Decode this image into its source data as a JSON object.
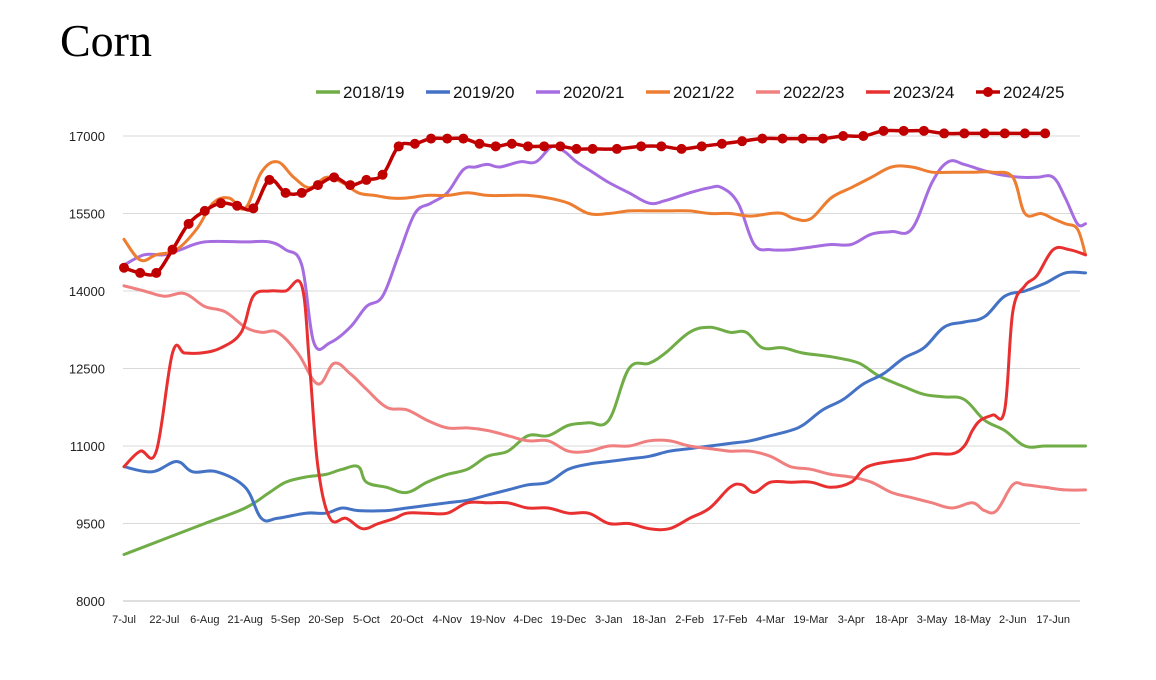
{
  "chart_data": {
    "type": "line",
    "title": "Corn",
    "ylim": [
      8000,
      17000
    ],
    "yticks": [
      8000,
      9500,
      11000,
      12500,
      14000,
      15500,
      17000
    ],
    "grid": "horizontal",
    "legend_position": "top",
    "x_tick_labels": [
      "7-Jul",
      "22-Jul",
      "6-Aug",
      "21-Aug",
      "5-Sep",
      "20-Sep",
      "5-Oct",
      "20-Oct",
      "4-Nov",
      "19-Nov",
      "4-Dec",
      "19-Dec",
      "3-Jan",
      "18-Jan",
      "2-Feb",
      "17-Feb",
      "4-Mar",
      "19-Mar",
      "3-Apr",
      "18-Apr",
      "3-May",
      "18-May",
      "2-Jun",
      "17-Jun"
    ],
    "series": [
      {
        "name": "2018/19",
        "color": "#70ad47",
        "markers": false,
        "x": [
          0,
          1,
          2,
          3,
          3.6,
          4,
          4.5,
          5,
          5.4,
          5.8,
          6,
          6.5,
          7,
          7.5,
          8,
          8.5,
          9,
          9.5,
          10,
          10.5,
          11,
          11.5,
          12,
          12.5,
          13,
          13.4,
          14,
          14.5,
          15,
          15.4,
          15.8,
          16.3,
          16.8,
          17.3,
          17.7,
          18.2,
          18.7,
          19.3,
          19.8,
          20.3,
          20.8,
          21.3,
          21.8,
          22.3,
          22.8,
          23.3,
          23.8
        ],
        "y": [
          8900,
          9200,
          9500,
          9800,
          10100,
          10300,
          10400,
          10450,
          10550,
          10600,
          10300,
          10200,
          10100,
          10300,
          10450,
          10550,
          10800,
          10900,
          11200,
          11200,
          11400,
          11450,
          11500,
          12500,
          12600,
          12800,
          13200,
          13300,
          13200,
          13200,
          12900,
          12900,
          12800,
          12750,
          12700,
          12600,
          12350,
          12150,
          12000,
          11950,
          11900,
          11500,
          11300,
          11000,
          11000,
          11000,
          11000
        ]
      },
      {
        "name": "2019/20",
        "color": "#4472c4",
        "markers": false,
        "x": [
          0,
          0.7,
          1.3,
          1.7,
          2.3,
          3,
          3.4,
          3.8,
          4.5,
          5,
          5.4,
          5.8,
          6.5,
          7,
          7.5,
          8,
          8.5,
          9,
          9.5,
          10,
          10.5,
          11,
          11.5,
          12,
          12.5,
          13,
          13.5,
          14,
          14.5,
          15,
          15.5,
          16,
          16.5,
          16.8,
          17.3,
          17.8,
          18.3,
          18.8,
          19.3,
          19.8,
          20.3,
          20.8,
          21.3,
          21.8,
          22.3,
          22.8,
          23.3,
          23.8
        ],
        "y": [
          10600,
          10500,
          10700,
          10500,
          10500,
          10200,
          9600,
          9600,
          9700,
          9700,
          9800,
          9750,
          9750,
          9800,
          9850,
          9900,
          9950,
          10050,
          10150,
          10250,
          10300,
          10550,
          10650,
          10700,
          10750,
          10800,
          10900,
          10950,
          11000,
          11050,
          11100,
          11200,
          11300,
          11400,
          11700,
          11900,
          12200,
          12400,
          12700,
          12900,
          13300,
          13400,
          13500,
          13900,
          14000,
          14150,
          14350,
          14350
        ]
      },
      {
        "name": "2020/21",
        "color": "#a66de0",
        "markers": false,
        "x": [
          0,
          0.5,
          1,
          1.4,
          2,
          3,
          3.6,
          4,
          4.4,
          4.7,
          5.1,
          5.6,
          6,
          6.4,
          6.8,
          7.2,
          7.6,
          8,
          8.4,
          8.7,
          9,
          9.3,
          9.8,
          10.2,
          10.6,
          10.9,
          11.2,
          11.6,
          12,
          12.5,
          13,
          13.4,
          14,
          14.5,
          14.8,
          15.2,
          15.6,
          16,
          16.5,
          17,
          17.5,
          18,
          18.5,
          19,
          19.5,
          20,
          20.4,
          20.8,
          21.2,
          21.7,
          22.2,
          22.6,
          23,
          23.3,
          23.6,
          23.8
        ],
        "y": [
          14500,
          14700,
          14700,
          14800,
          14950,
          14950,
          14950,
          14800,
          14500,
          13000,
          13000,
          13300,
          13700,
          13900,
          14700,
          15500,
          15700,
          15900,
          16350,
          16400,
          16450,
          16400,
          16500,
          16500,
          16800,
          16700,
          16500,
          16300,
          16100,
          15900,
          15700,
          15750,
          15900,
          16000,
          16000,
          15700,
          14900,
          14800,
          14800,
          14850,
          14900,
          14900,
          15100,
          15150,
          15200,
          16100,
          16500,
          16450,
          16350,
          16250,
          16200,
          16200,
          16200,
          15800,
          15300,
          15300
        ]
      },
      {
        "name": "2021/22",
        "color": "#ed7d31",
        "markers": false,
        "x": [
          0,
          0.4,
          0.8,
          1.3,
          1.8,
          2.2,
          2.6,
          3,
          3.4,
          3.8,
          4.2,
          4.6,
          5,
          5.4,
          5.8,
          6.2,
          6.6,
          7,
          7.5,
          8,
          8.5,
          9,
          9.5,
          10,
          10.5,
          11,
          11.5,
          12,
          12.5,
          13,
          13.5,
          14,
          14.5,
          15,
          15.5,
          16,
          16.3,
          16.6,
          17,
          17.5,
          18,
          18.5,
          19,
          19.5,
          20,
          20.5,
          21,
          21.5,
          22,
          22.3,
          22.7,
          23,
          23.3,
          23.6,
          23.8
        ],
        "y": [
          15000,
          14600,
          14700,
          14800,
          15200,
          15700,
          15800,
          15600,
          16300,
          16500,
          16200,
          16000,
          16200,
          16100,
          15900,
          15850,
          15800,
          15800,
          15850,
          15850,
          15900,
          15850,
          15850,
          15850,
          15800,
          15700,
          15500,
          15500,
          15550,
          15550,
          15550,
          15550,
          15500,
          15500,
          15450,
          15500,
          15500,
          15400,
          15400,
          15800,
          16000,
          16200,
          16400,
          16400,
          16300,
          16300,
          16300,
          16300,
          16200,
          15500,
          15500,
          15400,
          15300,
          15200,
          14700
        ]
      },
      {
        "name": "2022/23",
        "color": "#f08080",
        "markers": false,
        "x": [
          0,
          0.5,
          1,
          1.5,
          2,
          2.5,
          3,
          3.4,
          3.8,
          4.3,
          4.8,
          5.2,
          5.6,
          6,
          6.5,
          7,
          7.5,
          8,
          8.5,
          9,
          9.5,
          10,
          10.5,
          11,
          11.5,
          12,
          12.5,
          13,
          13.5,
          14,
          14.5,
          15,
          15.5,
          16,
          16.5,
          17,
          17.5,
          18,
          18.5,
          19,
          19.5,
          20,
          20.5,
          21,
          21.3,
          21.6,
          22,
          22.3,
          22.8,
          23.3,
          23.8
        ],
        "y": [
          14100,
          14000,
          13900,
          13950,
          13700,
          13600,
          13300,
          13200,
          13200,
          12800,
          12200,
          12600,
          12400,
          12100,
          11750,
          11700,
          11500,
          11350,
          11350,
          11300,
          11200,
          11100,
          11100,
          10900,
          10900,
          11000,
          11000,
          11100,
          11100,
          11000,
          10950,
          10900,
          10900,
          10800,
          10600,
          10550,
          10450,
          10400,
          10300,
          10100,
          10000,
          9900,
          9800,
          9900,
          9750,
          9750,
          10250,
          10250,
          10200,
          10150,
          10150
        ]
      },
      {
        "name": "2023/24",
        "color": "#e83030",
        "markers": false,
        "x": [
          0,
          0.4,
          0.8,
          1.2,
          1.5,
          1.9,
          2.4,
          2.9,
          3.2,
          3.6,
          4,
          4.4,
          4.6,
          4.8,
          5.1,
          5.5,
          5.9,
          6.3,
          6.7,
          7,
          7.5,
          8,
          8.5,
          9,
          9.5,
          10,
          10.5,
          11,
          11.5,
          12,
          12.5,
          13,
          13.5,
          14,
          14.5,
          15,
          15.3,
          15.6,
          16,
          16.5,
          17,
          17.5,
          18,
          18.3,
          18.6,
          19,
          19.5,
          20,
          20.5,
          20.8,
          21,
          21.2,
          21.5,
          21.8,
          22,
          22.3,
          22.6,
          23,
          23.4,
          23.8
        ],
        "y": [
          10600,
          10900,
          10900,
          12800,
          12800,
          12800,
          12900,
          13200,
          13900,
          14000,
          14000,
          14100,
          12500,
          10600,
          9600,
          9600,
          9400,
          9500,
          9600,
          9700,
          9700,
          9700,
          9900,
          9900,
          9900,
          9800,
          9800,
          9700,
          9700,
          9500,
          9500,
          9400,
          9400,
          9600,
          9800,
          10200,
          10250,
          10100,
          10300,
          10300,
          10300,
          10200,
          10300,
          10550,
          10650,
          10700,
          10750,
          10850,
          10850,
          11000,
          11300,
          11500,
          11600,
          11700,
          13600,
          14100,
          14300,
          14800,
          14800,
          14700
        ]
      },
      {
        "name": "2024/25",
        "color": "#c00000",
        "markers": true,
        "x": [
          0,
          0.4,
          0.8,
          1.2,
          1.6,
          2,
          2.4,
          2.8,
          3.2,
          3.6,
          4,
          4.4,
          4.8,
          5.2,
          5.6,
          6,
          6.4,
          6.8,
          7.2,
          7.6,
          8,
          8.4,
          8.8,
          9.2,
          9.6,
          10,
          10.4,
          10.8,
          11.2,
          11.6,
          12.2,
          12.8,
          13.3,
          13.8,
          14.3,
          14.8,
          15.3,
          15.8,
          16.3,
          16.8,
          17.3,
          17.8,
          18.3,
          18.8,
          19.3,
          19.8,
          20.3,
          20.8,
          21.3,
          21.8,
          22.3,
          22.8
        ],
        "y": [
          14450,
          14350,
          14350,
          14800,
          15300,
          15550,
          15700,
          15650,
          15600,
          16150,
          15900,
          15900,
          16050,
          16200,
          16050,
          16150,
          16250,
          16800,
          16850,
          16950,
          16950,
          16950,
          16850,
          16800,
          16850,
          16800,
          16800,
          16800,
          16750,
          16750,
          16750,
          16800,
          16800,
          16750,
          16800,
          16850,
          16900,
          16950,
          16950,
          16950,
          16950,
          17000,
          17000,
          17100,
          17100,
          17100,
          17050,
          17050,
          17050,
          17050,
          17050,
          17050
        ]
      }
    ]
  }
}
